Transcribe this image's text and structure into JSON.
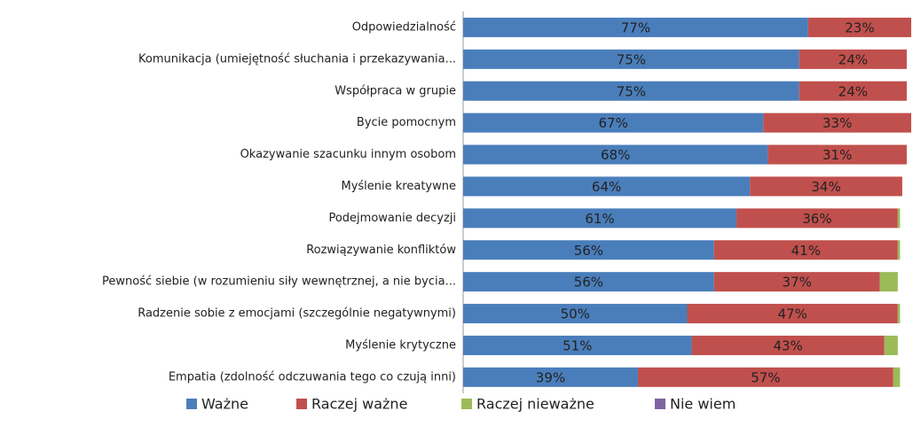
{
  "chart_data": {
    "type": "stacked_barh",
    "categories": [
      "Odpowiedzialność",
      "Komunikacja (umiejętność słuchania i przekazywania...",
      "Współpraca w grupie",
      "Bycie pomocnym",
      "Okazywanie szacunku innym osobom",
      "Myślenie kreatywne",
      "Podejmowanie decyzji",
      "Rozwiązywanie konfliktów",
      "Pewność siebie (w rozumieniu siły wewnętrznej, a nie bycia...",
      "Radzenie sobie z emocjami (szczególnie negatywnymi)",
      "Myślenie krytyczne",
      "Empatia (zdolność odczuwania tego co czują inni)"
    ],
    "series": [
      {
        "name": "Ważne",
        "color": "#4a7ebb",
        "values": [
          77,
          75,
          75,
          67,
          68,
          64,
          61,
          56,
          56,
          50,
          51,
          39
        ],
        "value_labels": [
          "77%",
          "75%",
          "75%",
          "67%",
          "68%",
          "64%",
          "61%",
          "56%",
          "56%",
          "50%",
          "51%",
          "39%"
        ]
      },
      {
        "name": "Raczej ważne",
        "color": "#c0504d",
        "values": [
          23,
          24,
          24,
          33,
          31,
          34,
          36,
          41,
          37,
          47,
          43,
          57
        ],
        "value_labels": [
          "23%",
          "24%",
          "24%",
          "33%",
          "31%",
          "34%",
          "36%",
          "41%",
          "37%",
          "47%",
          "43%",
          "57%"
        ]
      },
      {
        "name": "Raczej nieważne",
        "color": "#9bbb59",
        "values": [
          0,
          0,
          0,
          0,
          0,
          0,
          0.5,
          0.5,
          4,
          0.5,
          3,
          1.5
        ]
      },
      {
        "name": "Nie wiem",
        "color": "#8064a2",
        "values": [
          0,
          0,
          0,
          0,
          0,
          0,
          0,
          0,
          0,
          0,
          0,
          0
        ]
      }
    ],
    "xlim": [
      0,
      100
    ],
    "legend": "bottom"
  }
}
